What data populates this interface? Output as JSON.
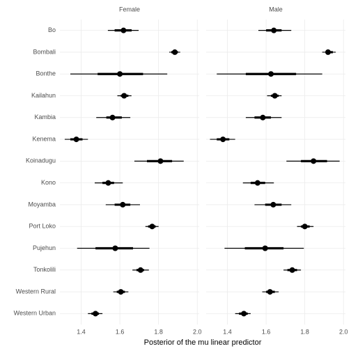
{
  "chart_data": {
    "type": "pointrange",
    "xlabel": "Posterior of the mu linear predictor",
    "categories": [
      "Bo",
      "Bombali",
      "Bonthe",
      "Kailahun",
      "Kambia",
      "Kenema",
      "Koinadugu",
      "Kono",
      "Moyamba",
      "Port Loko",
      "Pujehun",
      "Tonkolili",
      "Western Rural",
      "Western Urban"
    ],
    "xlim": [
      1.29,
      2.01
    ],
    "xticks": [
      1.4,
      1.6,
      1.8,
      {
        "value": 2,
        "label": "2.0"
      }
    ],
    "grid": true,
    "color": "#000000",
    "facets": [
      {
        "title": "Female",
        "values": [
          1.619,
          1.884,
          1.6,
          1.622,
          1.562,
          1.375,
          1.81,
          1.54,
          1.615,
          1.767,
          1.576,
          1.707,
          1.605,
          1.474
        ],
        "lower_inner": [
          1.573,
          1.866,
          1.485,
          1.605,
          1.53,
          1.344,
          1.74,
          1.51,
          1.573,
          1.746,
          1.474,
          1.686,
          1.584,
          1.453
        ],
        "upper_inner": [
          1.661,
          1.9,
          1.72,
          1.644,
          1.61,
          1.407,
          1.87,
          1.57,
          1.654,
          1.785,
          1.668,
          1.725,
          1.626,
          1.492
        ],
        "lower_outer": [
          1.538,
          1.855,
          1.344,
          1.587,
          1.478,
          1.315,
          1.675,
          1.47,
          1.527,
          1.732,
          1.379,
          1.665,
          1.566,
          1.435
        ],
        "upper_outer": [
          1.697,
          1.912,
          1.845,
          1.66,
          1.654,
          1.435,
          1.93,
          1.615,
          1.704,
          1.8,
          1.753,
          1.75,
          1.644,
          1.51
        ]
      },
      {
        "title": "Male",
        "values": [
          1.64,
          1.92,
          1.625,
          1.645,
          1.583,
          1.377,
          1.845,
          1.556,
          1.637,
          1.8,
          1.595,
          1.735,
          1.62,
          1.485
        ],
        "lower_inner": [
          1.6,
          1.91,
          1.495,
          1.625,
          1.54,
          1.345,
          1.78,
          1.52,
          1.595,
          1.78,
          1.49,
          1.71,
          1.6,
          1.46
        ],
        "upper_inner": [
          1.68,
          1.945,
          1.755,
          1.665,
          1.625,
          1.41,
          1.915,
          1.595,
          1.68,
          1.825,
          1.69,
          1.76,
          1.645,
          1.505
        ],
        "lower_outer": [
          1.56,
          1.89,
          1.345,
          1.605,
          1.495,
          1.31,
          1.705,
          1.48,
          1.54,
          1.76,
          1.385,
          1.69,
          1.58,
          1.44
        ],
        "upper_outer": [
          1.73,
          1.96,
          1.89,
          1.68,
          1.68,
          1.44,
          1.98,
          1.64,
          1.73,
          1.845,
          1.795,
          1.78,
          1.665,
          1.52
        ]
      }
    ]
  }
}
